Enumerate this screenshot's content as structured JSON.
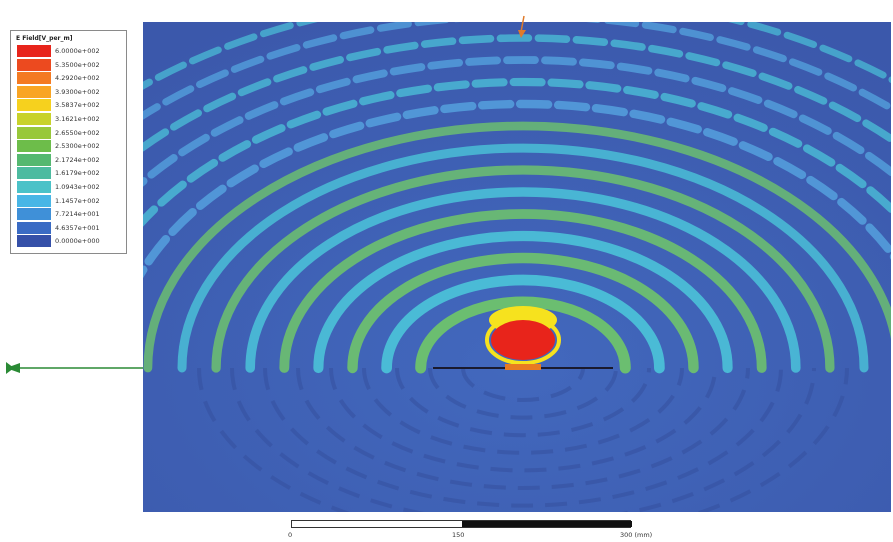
{
  "legend": {
    "title": "E Field[V_per_m]",
    "entries": [
      {
        "label": "6.0000e+002",
        "color": "#e8241b"
      },
      {
        "label": "5.3500e+002",
        "color": "#ec4a1f"
      },
      {
        "label": "4.2920e+002",
        "color": "#f47a22"
      },
      {
        "label": "3.9300e+002",
        "color": "#f9a524"
      },
      {
        "label": "3.5837e+002",
        "color": "#f6d11e"
      },
      {
        "label": "3.1621e+002",
        "color": "#c8d22a"
      },
      {
        "label": "2.6550e+002",
        "color": "#98c83a"
      },
      {
        "label": "2.5300e+002",
        "color": "#6dbd4a"
      },
      {
        "label": "2.1724e+002",
        "color": "#55b870"
      },
      {
        "label": "1.6179e+002",
        "color": "#4dbba0"
      },
      {
        "label": "1.0943e+002",
        "color": "#4bc2c8"
      },
      {
        "label": "1.1457e+002",
        "color": "#48b6e6"
      },
      {
        "label": "7.7214e+001",
        "color": "#3f90d8"
      },
      {
        "label": "4.6357e+001",
        "color": "#3a6bc4"
      },
      {
        "label": "0.0000e+000",
        "color": "#3550a8"
      }
    ]
  },
  "scale_bar": {
    "labels": [
      "0",
      "150",
      "300 (mm)"
    ]
  },
  "colors": {
    "background_field": "#3f5fb5",
    "band_cyan": "#4bc2d8",
    "band_green": "#6ec36c",
    "band_lightblue": "#56a6e0",
    "hotspot_red": "#e8241b",
    "hotspot_yellow": "#f6e21e",
    "arrow_green": "#2a8a35",
    "arrow_orange": "#e07a2a"
  }
}
